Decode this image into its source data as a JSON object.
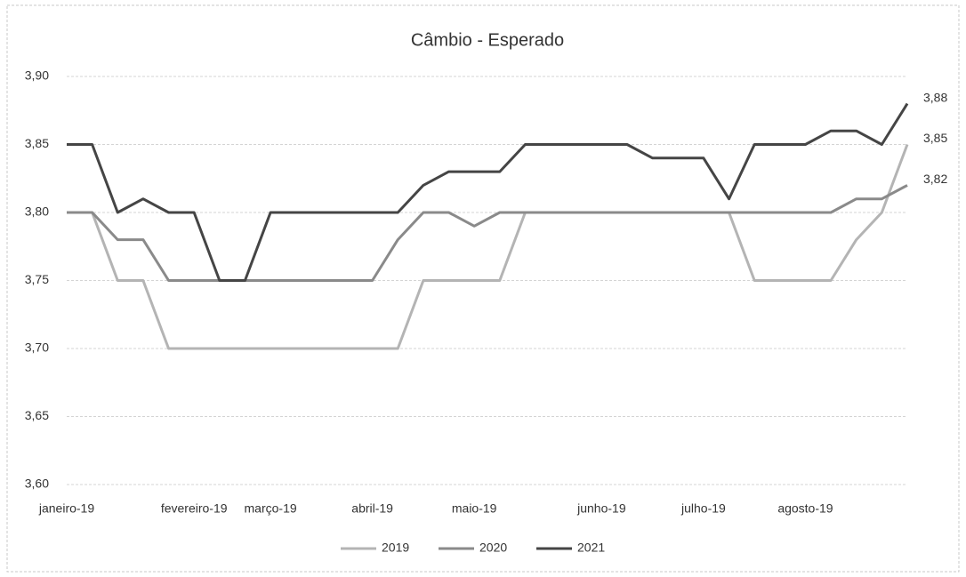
{
  "chart_data": {
    "type": "line",
    "title": "Câmbio - Esperado",
    "categories": [
      "janeiro-19",
      null,
      null,
      null,
      null,
      "fevereiro-19",
      null,
      null,
      "março-19",
      null,
      null,
      null,
      "abril-19",
      null,
      null,
      null,
      "maio-19",
      null,
      null,
      null,
      null,
      "junho-19",
      null,
      null,
      null,
      "julho-19",
      null,
      null,
      null,
      "agosto-19",
      null,
      null,
      null,
      null
    ],
    "series": [
      {
        "name": "2019",
        "color": "#b4b4b4",
        "values": [
          3.8,
          3.8,
          3.75,
          3.75,
          3.7,
          3.7,
          3.7,
          3.7,
          3.7,
          3.7,
          3.7,
          3.7,
          3.7,
          3.7,
          3.75,
          3.75,
          3.75,
          3.75,
          3.8,
          3.8,
          3.8,
          3.8,
          3.8,
          3.8,
          3.8,
          3.8,
          3.8,
          3.75,
          3.75,
          3.75,
          3.75,
          3.78,
          3.8,
          3.85
        ],
        "value_labels": [
          null,
          null,
          null,
          null,
          null,
          null,
          null,
          null,
          null,
          null,
          null,
          null,
          null,
          null,
          null,
          null,
          null,
          null,
          null,
          null,
          null,
          null,
          null,
          null,
          null,
          null,
          null,
          null,
          null,
          null,
          null,
          null,
          null,
          "3,85"
        ]
      },
      {
        "name": "2020",
        "color": "#8a8a8a",
        "values": [
          3.8,
          3.8,
          3.78,
          3.78,
          3.75,
          3.75,
          3.75,
          3.75,
          3.75,
          3.75,
          3.75,
          3.75,
          3.75,
          3.78,
          3.8,
          3.8,
          3.79,
          3.8,
          3.8,
          3.8,
          3.8,
          3.8,
          3.8,
          3.8,
          3.8,
          3.8,
          3.8,
          3.8,
          3.8,
          3.8,
          3.8,
          3.81,
          3.81,
          3.82
        ],
        "value_labels": [
          null,
          null,
          null,
          null,
          null,
          null,
          null,
          null,
          null,
          null,
          null,
          null,
          null,
          null,
          null,
          null,
          null,
          null,
          null,
          null,
          null,
          null,
          null,
          null,
          null,
          null,
          null,
          null,
          null,
          null,
          null,
          null,
          null,
          "3,82"
        ]
      },
      {
        "name": "2021",
        "color": "#454545",
        "values": [
          3.85,
          3.85,
          3.8,
          3.81,
          3.8,
          3.8,
          3.75,
          3.75,
          3.8,
          3.8,
          3.8,
          3.8,
          3.8,
          3.8,
          3.82,
          3.83,
          3.83,
          3.83,
          3.85,
          3.85,
          3.85,
          3.85,
          3.85,
          3.84,
          3.84,
          3.84,
          3.81,
          3.85,
          3.85,
          3.85,
          3.86,
          3.86,
          3.85,
          3.88
        ],
        "value_labels": [
          null,
          null,
          null,
          null,
          null,
          null,
          null,
          null,
          null,
          null,
          null,
          null,
          null,
          null,
          null,
          null,
          null,
          null,
          null,
          null,
          null,
          null,
          null,
          null,
          null,
          null,
          null,
          null,
          null,
          null,
          null,
          null,
          null,
          "3,88"
        ]
      }
    ],
    "ylim": [
      3.6,
      3.9
    ],
    "yticks": [
      {
        "value": 3.6,
        "label": "3,60"
      },
      {
        "value": 3.65,
        "label": "3,65"
      },
      {
        "value": 3.7,
        "label": "3,70"
      },
      {
        "value": 3.75,
        "label": "3,75"
      },
      {
        "value": 3.8,
        "label": "3,80"
      },
      {
        "value": 3.85,
        "label": "3,85"
      },
      {
        "value": 3.9,
        "label": "3,90"
      }
    ],
    "grid": true,
    "legend": "bottom"
  }
}
